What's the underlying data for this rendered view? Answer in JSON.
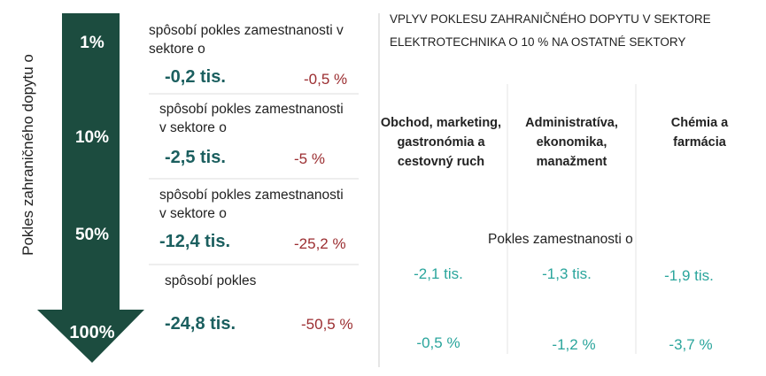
{
  "axis_label": "Pokles zahraničného dopytu o",
  "levels": [
    {
      "percent": "1%",
      "text": "spôsobí pokles zamestnanosti v sektore o",
      "employment": "-0,2 tis.",
      "share": "-0,5 %"
    },
    {
      "percent": "10%",
      "text": "spôsobí pokles zamestnanosti v sektore o",
      "employment": "-2,5 tis.",
      "share": "-5 %"
    },
    {
      "percent": "50%",
      "text": "spôsobí pokles zamestnanosti v sektore o",
      "employment": "-12,4 tis.",
      "share": "-25,2 %"
    },
    {
      "percent": "100%",
      "text": "spôsobí pokles",
      "employment": "-24,8 tis.",
      "share": "-50,5 %"
    }
  ],
  "right": {
    "title_line1": "VPLYV POKLESU ZAHRANIČNÉHO DOPYTU V SEKTORE",
    "title_line2": "ELEKTROTECHNIKA O 10 % NA OSTATNÉ SEKTORY",
    "subheading": "Pokles zamestnanosti o",
    "sectors": [
      {
        "name": "Obchod, marketing, gastronómia a cestovný ruch",
        "employment": "-2,1 tis.",
        "share": "-0,5 %"
      },
      {
        "name": "Administratíva, ekonomika, manažment",
        "employment": "-1,3 tis.",
        "share": "-1,2 %"
      },
      {
        "name": "Chémia a farmácia",
        "employment": "-1,9 tis.",
        "share": "-3,7 %"
      }
    ]
  }
}
